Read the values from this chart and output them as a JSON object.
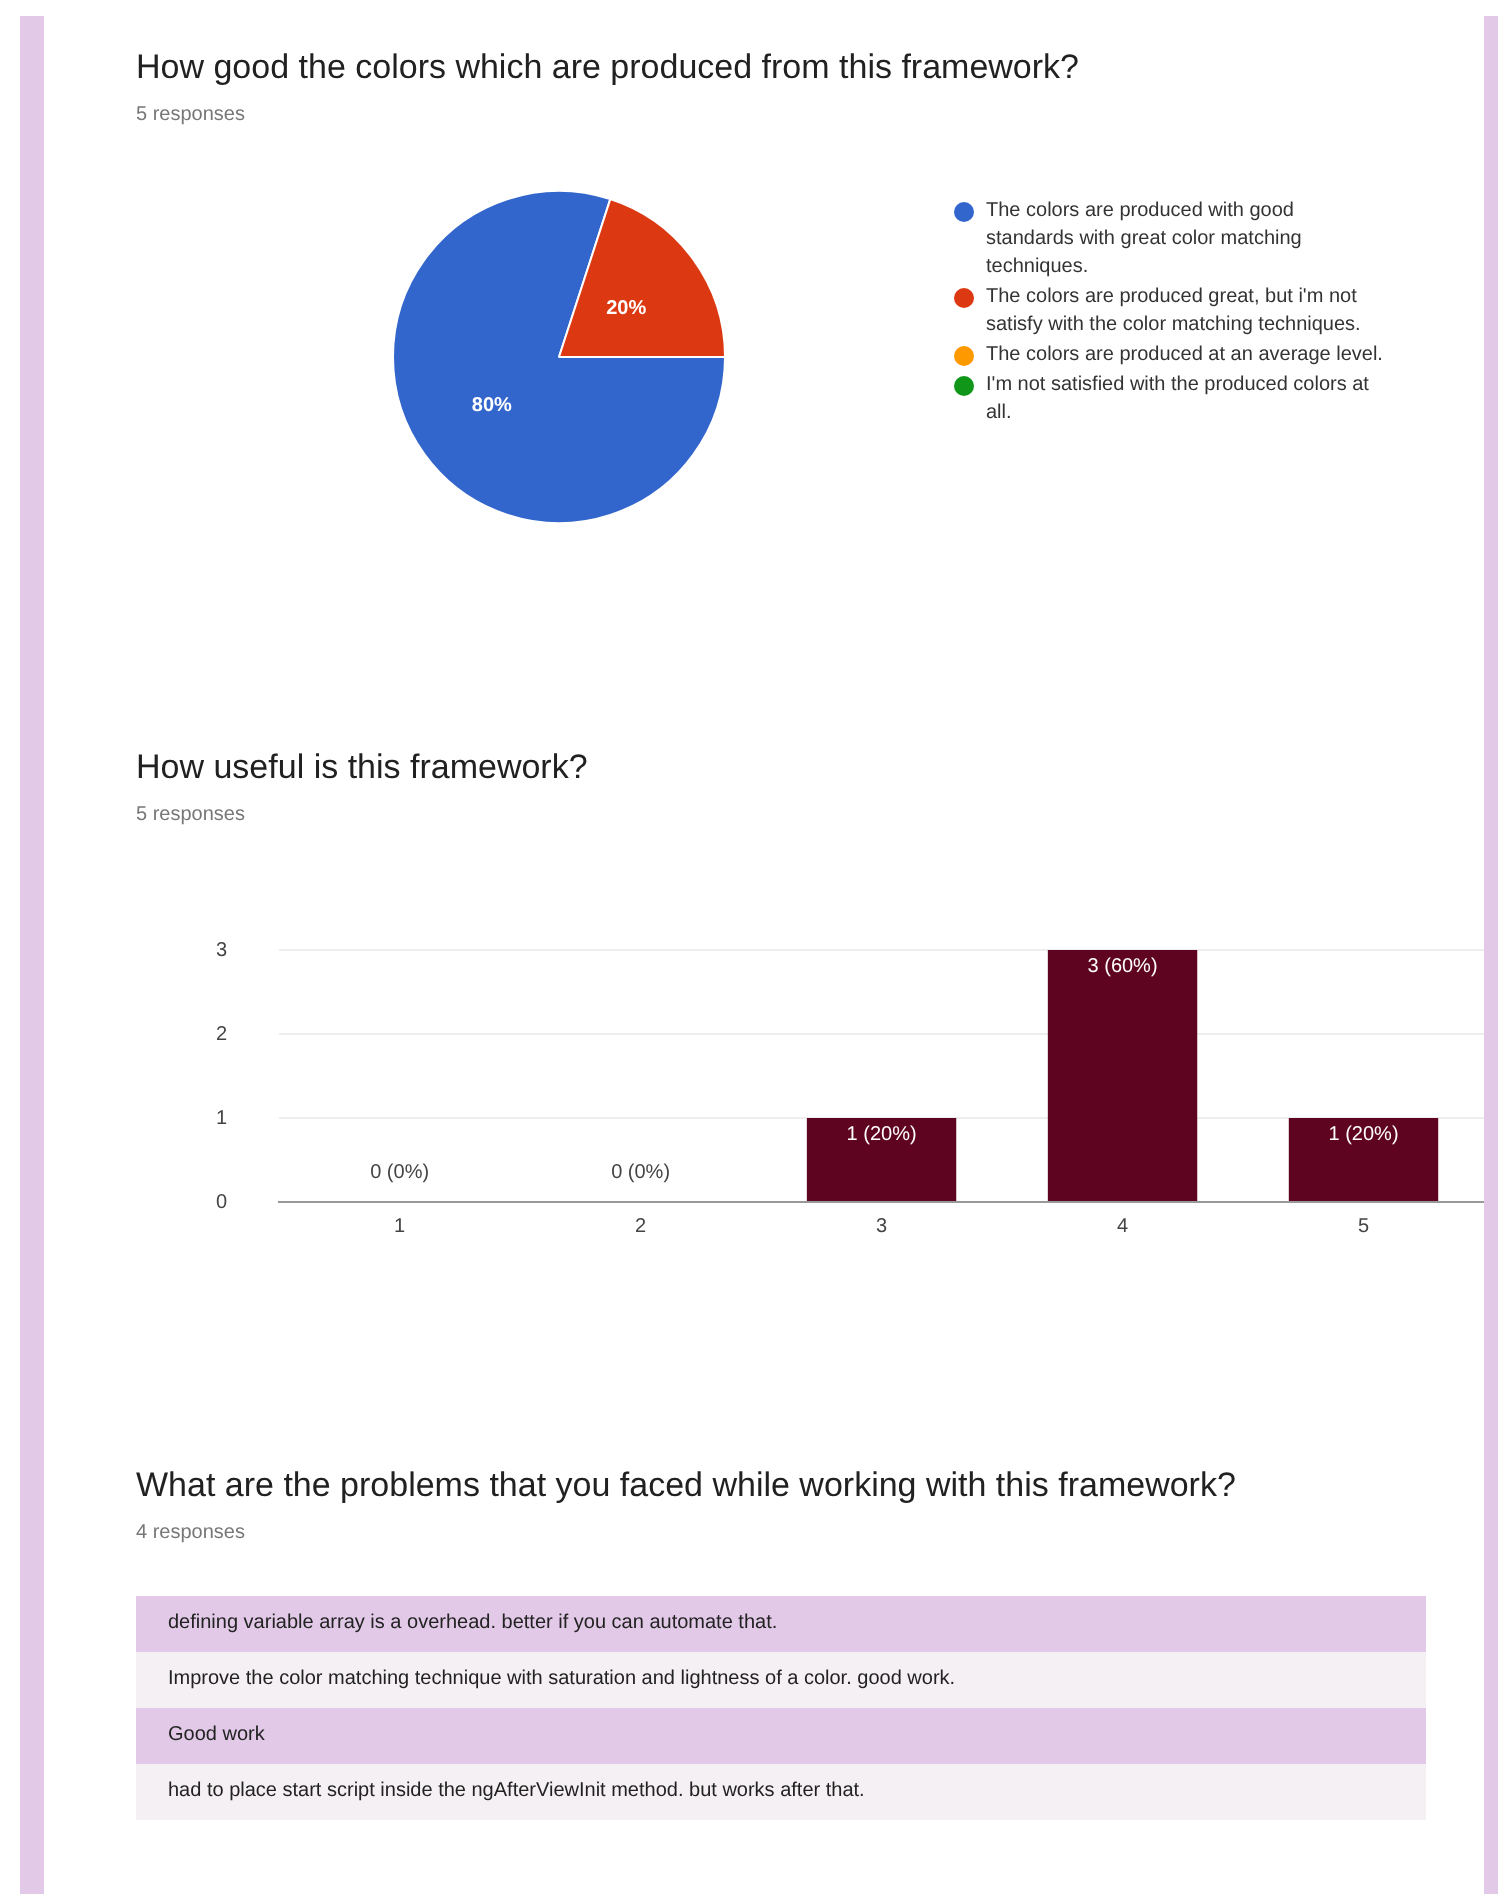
{
  "chart_data": [
    {
      "type": "pie",
      "title": "How good the colors which are produced from this framework?",
      "subtitle": "5 responses",
      "categories": [
        "The colors are produced with good standards with great color matching techniques.",
        "The colors are produced great, but i'm not satisfy with the color matching techniques.",
        "The colors are produced at an average level.",
        "I'm not satisfied with the produced colors at all."
      ],
      "values": [
        80,
        20,
        0,
        0
      ],
      "colors": [
        "#3366cc",
        "#dc3912",
        "#ff9900",
        "#109618"
      ],
      "value_labels": [
        "80%",
        "20%",
        null,
        null
      ],
      "legend": "right"
    },
    {
      "type": "bar",
      "title": "How useful is this framework?",
      "subtitle": "5 responses",
      "categories": [
        "1",
        "2",
        "3",
        "4",
        "5"
      ],
      "values": [
        0,
        0,
        1,
        3,
        1
      ],
      "color": "#5e0421",
      "value_labels": [
        "0 (0%)",
        "0 (0%)",
        "1 (20%)",
        "3 (60%)",
        "1 (20%)"
      ],
      "ylim": [
        0,
        3
      ],
      "yticks": [
        0,
        1,
        2,
        3
      ],
      "grid": "y"
    },
    {
      "type": "other",
      "title": "What are the problems that you faced while working with this framework?",
      "subtitle": "4 responses",
      "annotations": [
        "defining variable array is a overhead. better if you can automate that.",
        "Improve the color matching technique with saturation and lightness of a color. good work.",
        "Good work",
        "had to place start script inside the ngAfterViewInit method. but works after that."
      ]
    }
  ]
}
